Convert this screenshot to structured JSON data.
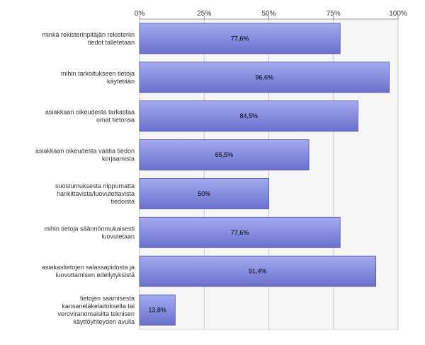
{
  "chart_data": {
    "type": "bar",
    "orientation": "horizontal",
    "categories": [
      "minkä rekisterinpitäjän rekisteriin tiedot talletetaan",
      "mihin tarkoitukseen tietoja käytetään",
      "asiakkaan oikeudesta tarkastaa omat tietonsa",
      "asiakkaan oikeudesta vaatia tiedon korjaamista",
      "suostumuksesta riippumatta hankittavista/luovutettavista tiedoista",
      "mihin tietoja säännönmukaisesti luovutetaan",
      "asiakastietojen salassapidosta ja luovuttamisen edellytyksistä",
      "tietojen saamisesta kansaneläkelaitokselta tai veroviranomaisilta teknisen käyttöyhteyden avulla"
    ],
    "category_lines": [
      [
        "minkä rekisterinpitäjän rekisteriin",
        "tiedot talletetaan"
      ],
      [
        "mihin tarkoitukseen tietoja",
        "käytetään"
      ],
      [
        "asiakkaan oikeudesta tarkastaa",
        "omat tietonsa"
      ],
      [
        "asiakkaan oikeudesta vaatia tiedon",
        "korjaamista"
      ],
      [
        "suostumuksesta riippumatta",
        "hankittavista/luovutettavista",
        "tiedoista"
      ],
      [
        "mihin tietoja säännönmukaisesti",
        "luovutetaan"
      ],
      [
        "asiakastietojen salassapidosta ja",
        "luovuttamisen edellytyksistä"
      ],
      [
        "tietojen saamisesta",
        "kansaneläkelaitokselta tai",
        "veroviranomaisilta teknisen",
        "käyttöyhteyden avulla"
      ]
    ],
    "values": [
      77.6,
      96.6,
      84.5,
      65.5,
      50,
      77.6,
      91.4,
      13.8
    ],
    "data_labels": [
      "77,6%",
      "96,6%",
      "84,5%",
      "65,5%",
      "50%",
      "77,6%",
      "91,4%",
      "13,8%"
    ],
    "x_ticks": [
      0,
      25,
      50,
      75,
      100
    ],
    "x_tick_labels": [
      "0%",
      "25%",
      "50%",
      "75%",
      "100%"
    ],
    "xlim": [
      0,
      100
    ],
    "xlabel": "",
    "ylabel": "",
    "title": "",
    "grid": true,
    "colors": {
      "bar_top": "#a6aaf0",
      "bar_bottom": "#6a70cc",
      "bar_edge": "#4e54aa",
      "plot_bg": "#f6f6f6",
      "grid": "#c8c8c8"
    }
  }
}
